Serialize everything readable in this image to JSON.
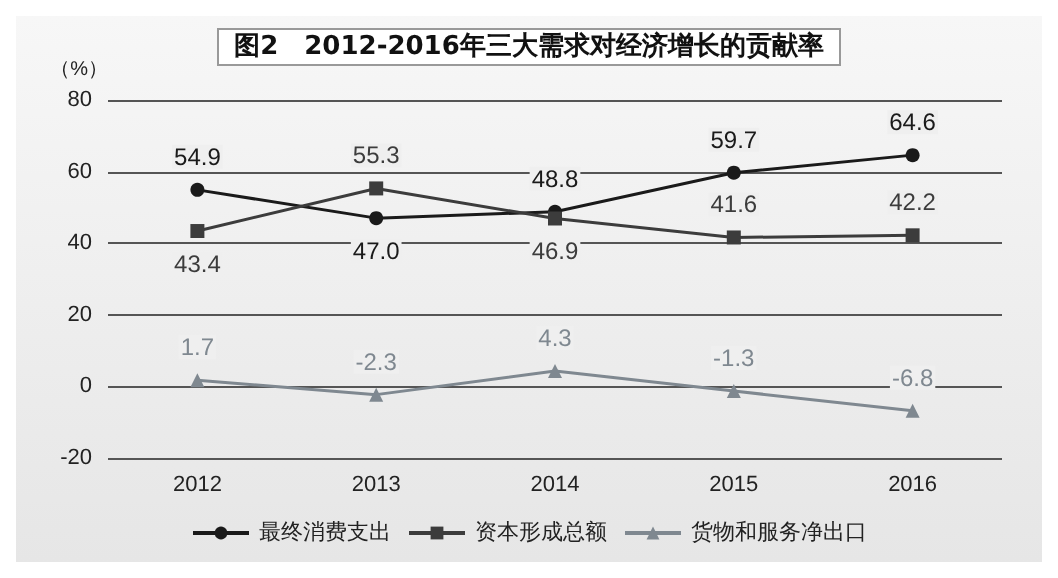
{
  "chart_data": {
    "type": "line",
    "title": "图2　2012-2016年三大需求对经济增长的贡献率",
    "ylabel": "（%）",
    "categories": [
      "2012",
      "2013",
      "2014",
      "2015",
      "2016"
    ],
    "series": [
      {
        "name": "最终消费支出",
        "color": "#1a1a1a",
        "marker": "circle",
        "values": [
          54.9,
          47.0,
          48.8,
          59.7,
          64.6
        ],
        "value_labels": [
          "54.9",
          "47.0",
          "48.8",
          "59.7",
          "64.6"
        ]
      },
      {
        "name": "资本形成总额",
        "color": "#3c3c3c",
        "marker": "square",
        "values": [
          43.4,
          55.3,
          46.9,
          41.6,
          42.2
        ],
        "value_labels": [
          "43.4",
          "55.3",
          "46.9",
          "41.6",
          "42.2"
        ]
      },
      {
        "name": "货物和服务净出口",
        "color": "#7f8890",
        "marker": "triangle",
        "values": [
          1.7,
          -2.3,
          4.3,
          -1.3,
          -6.8
        ],
        "value_labels": [
          "1.7",
          "-2.3",
          "4.3",
          "-1.3",
          "-6.8"
        ]
      }
    ],
    "ylim": [
      -20,
      80
    ],
    "yticks": [
      -20,
      0,
      20,
      40,
      60,
      80
    ],
    "grid": "y",
    "legend": "bottom",
    "line_style": "solid"
  }
}
